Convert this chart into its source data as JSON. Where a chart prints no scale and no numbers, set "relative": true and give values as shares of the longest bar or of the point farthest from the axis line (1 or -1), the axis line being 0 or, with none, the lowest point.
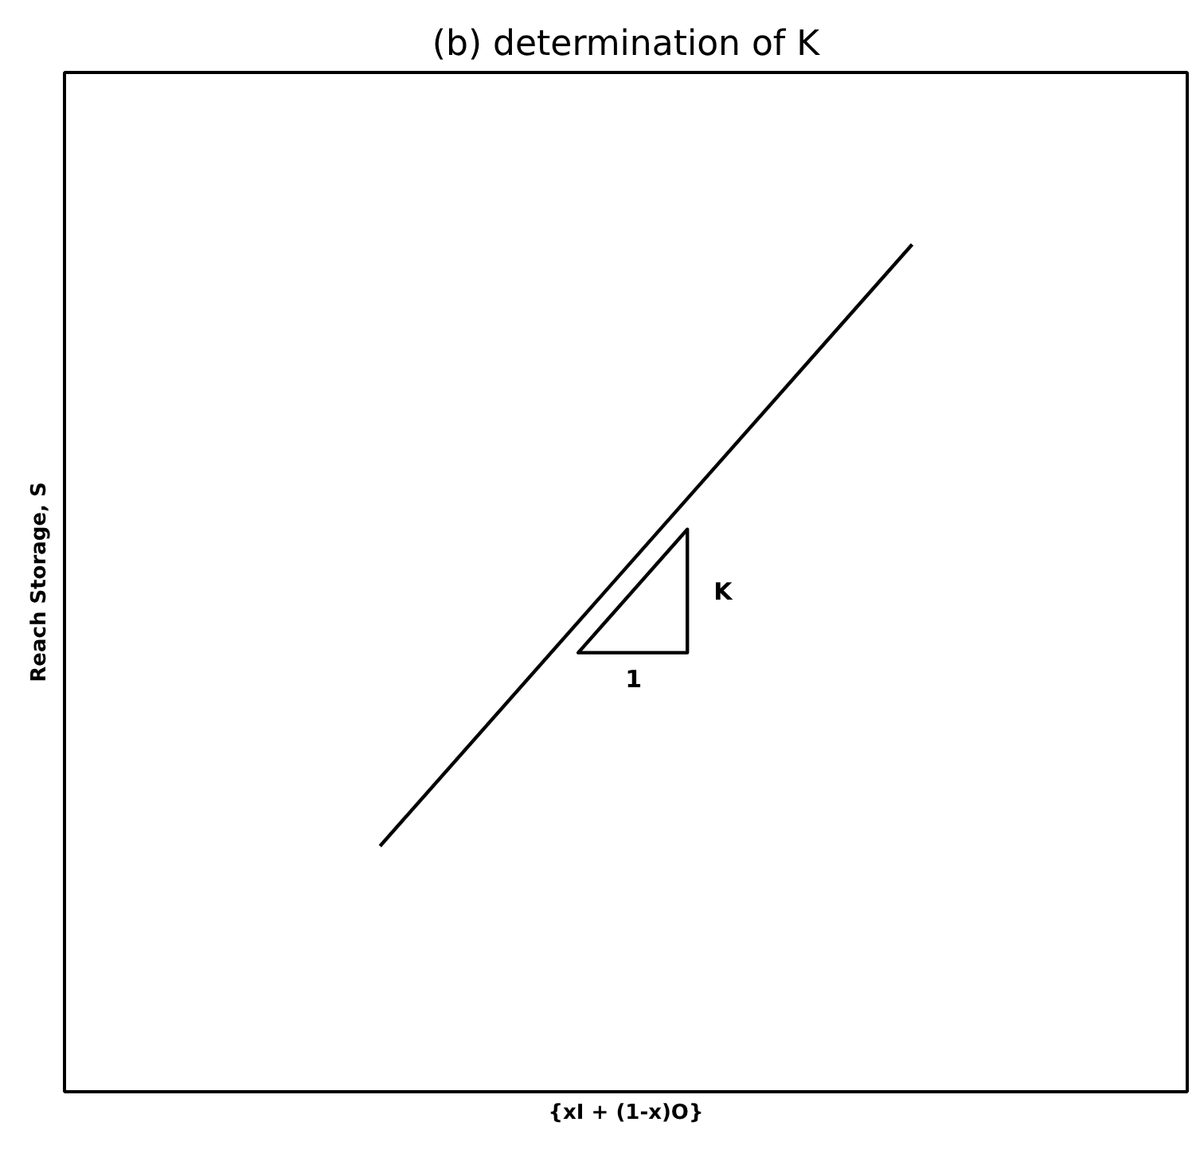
{
  "chart_data": {
    "type": "line",
    "title": "(b) determination of K",
    "xlabel": "{xI + (1-x)O}",
    "ylabel": "Reach Storage, S",
    "categories": [
      null,
      null
    ],
    "relative": true,
    "series": [
      {
        "color": "#000000",
        "values": [
          0.29,
          1
        ]
      }
    ],
    "annotations": [
      "K",
      "1"
    ]
  }
}
